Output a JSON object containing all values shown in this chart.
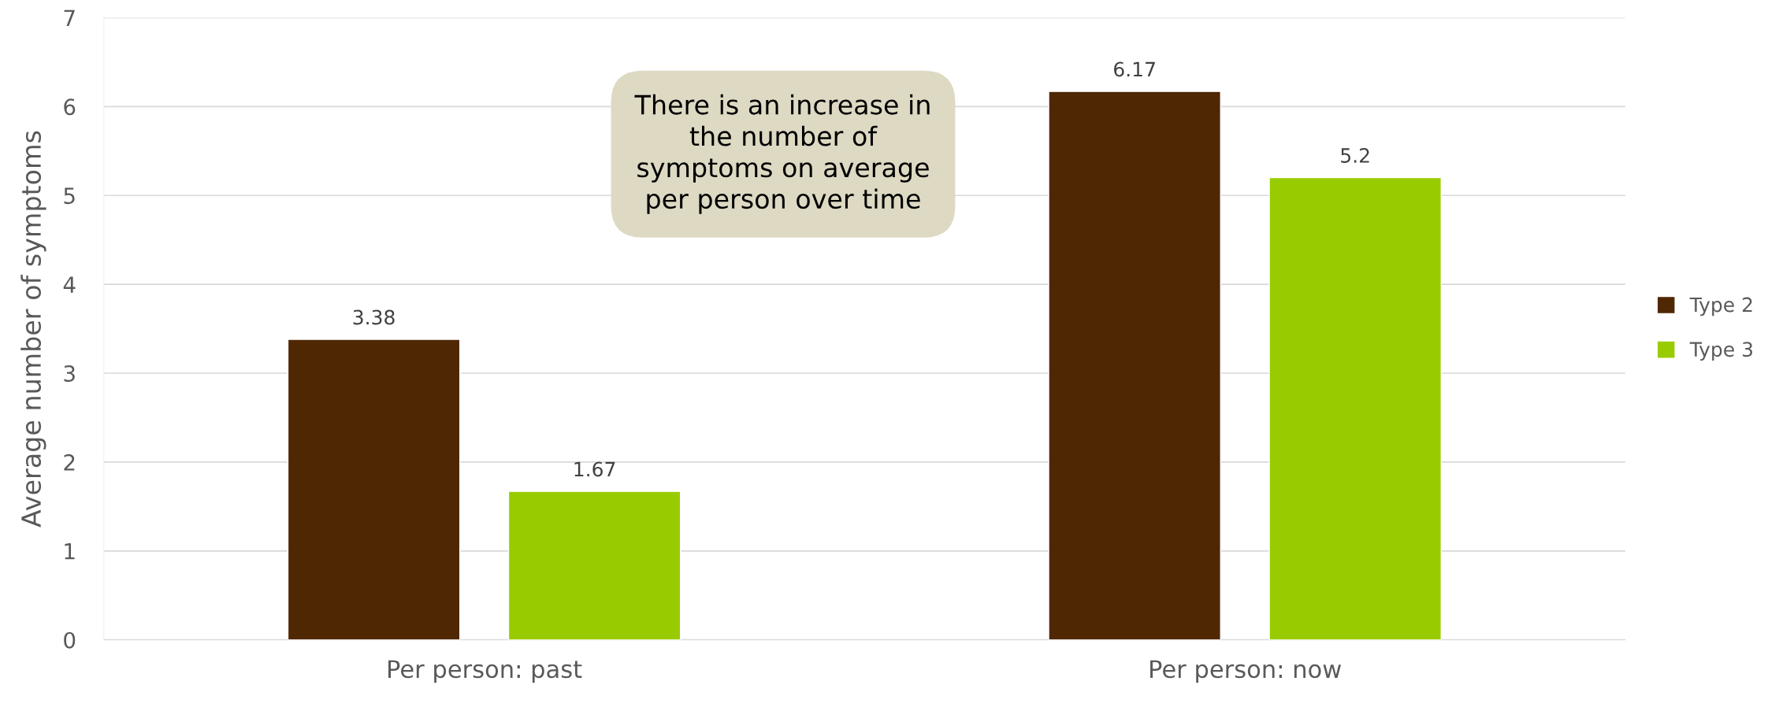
{
  "chart_data": {
    "type": "bar",
    "ylabel": "Average number of symptoms",
    "categories": [
      "Per person: past",
      "Per person: now"
    ],
    "series": [
      {
        "name": "Type 2",
        "color": "#4f2702",
        "values": [
          3.38,
          6.17
        ]
      },
      {
        "name": "Type 3",
        "color": "#99cc00",
        "values": [
          1.67,
          5.2
        ]
      }
    ],
    "ylim": [
      0,
      7
    ],
    "yticks": [
      0,
      1,
      2,
      3,
      4,
      5,
      6,
      7
    ],
    "grid": "y",
    "legend": "right",
    "data_labels": true,
    "annotations": [
      "There is an increase in\nthe number of\nsymptoms on average\nper person over time"
    ]
  }
}
